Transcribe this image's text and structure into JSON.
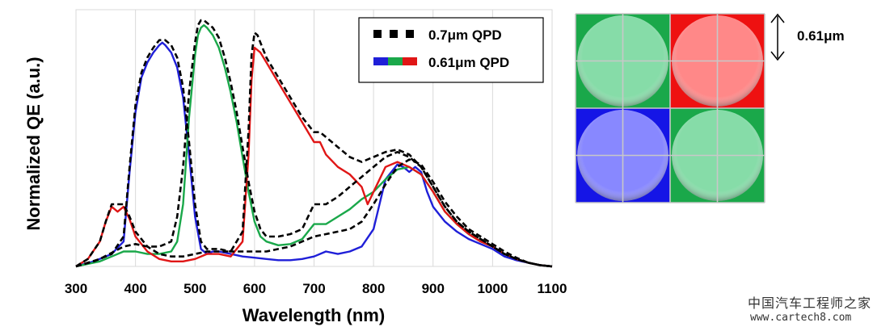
{
  "chart_data": {
    "type": "line",
    "xlabel": "Wavelength (nm)",
    "ylabel": "Normalized QE (a.u.)",
    "xlim": [
      300,
      1100
    ],
    "ylim": [
      0,
      1.0
    ],
    "xticks": [
      "300",
      "400",
      "500",
      "600",
      "700",
      "800",
      "900",
      "1000",
      "1100"
    ],
    "grid": "vertical",
    "legend_position": "top-right",
    "legend": [
      {
        "label": "0.7μm QPD",
        "style": "dashed",
        "colors": [
          "#000000"
        ]
      },
      {
        "label": "0.61μm QPD",
        "style": "solid",
        "colors": [
          "#1f1fd8",
          "#1aa84a",
          "#e01616"
        ]
      }
    ],
    "series": [
      {
        "name": "0.61μm QPD blue",
        "color": "#1f1fd8",
        "style": "solid",
        "x": [
          300,
          330,
          360,
          380,
          390,
          400,
          410,
          420,
          430,
          440,
          445,
          450,
          460,
          470,
          480,
          490,
          500,
          510,
          520,
          530,
          540,
          560,
          580,
          600,
          620,
          640,
          660,
          680,
          700,
          720,
          740,
          760,
          780,
          800,
          810,
          820,
          830,
          840,
          850,
          860,
          870,
          880,
          890,
          900,
          920,
          940,
          960,
          980,
          1000,
          1020,
          1040,
          1060,
          1080,
          1100
        ],
        "y": [
          0,
          0.02,
          0.05,
          0.1,
          0.38,
          0.62,
          0.76,
          0.82,
          0.86,
          0.89,
          0.9,
          0.89,
          0.86,
          0.8,
          0.68,
          0.45,
          0.2,
          0.07,
          0.05,
          0.06,
          0.06,
          0.05,
          0.04,
          0.035,
          0.03,
          0.025,
          0.025,
          0.03,
          0.04,
          0.06,
          0.05,
          0.06,
          0.08,
          0.15,
          0.25,
          0.35,
          0.38,
          0.41,
          0.4,
          0.38,
          0.4,
          0.38,
          0.3,
          0.24,
          0.18,
          0.14,
          0.11,
          0.09,
          0.07,
          0.04,
          0.025,
          0.015,
          0.005,
          0
        ]
      },
      {
        "name": "0.61μm QPD green",
        "color": "#1aa84a",
        "style": "solid",
        "x": [
          300,
          340,
          360,
          380,
          400,
          420,
          440,
          460,
          470,
          480,
          490,
          500,
          505,
          510,
          515,
          520,
          530,
          540,
          550,
          560,
          570,
          580,
          590,
          600,
          610,
          620,
          640,
          660,
          680,
          700,
          720,
          740,
          760,
          780,
          800,
          820,
          840,
          860,
          880,
          900,
          920,
          940,
          960,
          980,
          1000,
          1020,
          1040,
          1060,
          1080,
          1100
        ],
        "y": [
          0,
          0.02,
          0.04,
          0.06,
          0.06,
          0.05,
          0.05,
          0.06,
          0.1,
          0.25,
          0.6,
          0.85,
          0.93,
          0.96,
          0.97,
          0.96,
          0.93,
          0.88,
          0.8,
          0.7,
          0.58,
          0.44,
          0.3,
          0.18,
          0.12,
          0.1,
          0.085,
          0.09,
          0.11,
          0.17,
          0.17,
          0.2,
          0.23,
          0.27,
          0.3,
          0.35,
          0.39,
          0.4,
          0.37,
          0.3,
          0.22,
          0.17,
          0.13,
          0.1,
          0.08,
          0.05,
          0.03,
          0.015,
          0.005,
          0
        ]
      },
      {
        "name": "0.61μm QPD red",
        "color": "#e01616",
        "style": "solid",
        "x": [
          300,
          320,
          340,
          350,
          360,
          370,
          380,
          390,
          400,
          420,
          440,
          460,
          480,
          500,
          520,
          540,
          560,
          580,
          590,
          595,
          600,
          610,
          620,
          640,
          660,
          680,
          700,
          710,
          720,
          740,
          760,
          780,
          790,
          800,
          820,
          840,
          860,
          880,
          900,
          920,
          940,
          960,
          980,
          1000,
          1020,
          1040,
          1060,
          1080,
          1100
        ],
        "y": [
          0,
          0.03,
          0.1,
          0.18,
          0.24,
          0.22,
          0.24,
          0.19,
          0.12,
          0.06,
          0.03,
          0.02,
          0.02,
          0.03,
          0.05,
          0.05,
          0.04,
          0.1,
          0.45,
          0.75,
          0.88,
          0.86,
          0.82,
          0.74,
          0.66,
          0.58,
          0.5,
          0.5,
          0.45,
          0.4,
          0.37,
          0.32,
          0.25,
          0.3,
          0.4,
          0.42,
          0.4,
          0.37,
          0.3,
          0.22,
          0.17,
          0.13,
          0.1,
          0.08,
          0.05,
          0.03,
          0.015,
          0.005,
          0
        ]
      },
      {
        "name": "0.7μm QPD blue",
        "color": "#000000",
        "style": "dashed",
        "x": [
          300,
          330,
          360,
          380,
          390,
          400,
          410,
          420,
          430,
          440,
          450,
          460,
          470,
          480,
          490,
          500,
          510,
          520,
          540,
          560,
          580,
          600,
          620,
          640,
          660,
          680,
          700,
          720,
          740,
          760,
          780,
          800,
          820,
          840,
          860,
          880,
          900,
          920,
          940,
          960,
          980,
          1000,
          1020,
          1040,
          1060,
          1080,
          1100
        ],
        "y": [
          0,
          0.02,
          0.05,
          0.12,
          0.4,
          0.65,
          0.78,
          0.84,
          0.88,
          0.91,
          0.91,
          0.89,
          0.84,
          0.72,
          0.5,
          0.25,
          0.1,
          0.07,
          0.07,
          0.06,
          0.06,
          0.06,
          0.06,
          0.07,
          0.08,
          0.1,
          0.12,
          0.13,
          0.14,
          0.15,
          0.18,
          0.25,
          0.33,
          0.4,
          0.43,
          0.41,
          0.34,
          0.26,
          0.2,
          0.15,
          0.12,
          0.09,
          0.06,
          0.035,
          0.015,
          0.005,
          0
        ]
      },
      {
        "name": "0.7μm QPD green",
        "color": "#000000",
        "style": "dashed",
        "x": [
          300,
          340,
          380,
          400,
          420,
          440,
          460,
          470,
          480,
          490,
          500,
          505,
          510,
          515,
          520,
          530,
          540,
          550,
          560,
          570,
          580,
          590,
          600,
          610,
          620,
          640,
          660,
          680,
          700,
          720,
          740,
          760,
          780,
          800,
          820,
          840,
          860,
          880,
          900,
          920,
          940,
          960,
          980,
          1000,
          1020,
          1040,
          1060,
          1080,
          1100
        ],
        "y": [
          0,
          0.03,
          0.08,
          0.09,
          0.08,
          0.08,
          0.1,
          0.2,
          0.4,
          0.7,
          0.9,
          0.97,
          0.99,
          0.99,
          0.98,
          0.96,
          0.92,
          0.84,
          0.74,
          0.62,
          0.48,
          0.34,
          0.22,
          0.15,
          0.12,
          0.12,
          0.13,
          0.15,
          0.25,
          0.25,
          0.28,
          0.32,
          0.36,
          0.4,
          0.44,
          0.46,
          0.44,
          0.4,
          0.32,
          0.24,
          0.18,
          0.14,
          0.11,
          0.08,
          0.05,
          0.03,
          0.015,
          0.005,
          0
        ]
      },
      {
        "name": "0.7μm QPD red",
        "color": "#000000",
        "style": "dashed",
        "x": [
          300,
          320,
          340,
          350,
          360,
          370,
          380,
          390,
          400,
          420,
          440,
          460,
          480,
          500,
          520,
          540,
          560,
          580,
          590,
          595,
          600,
          605,
          610,
          620,
          640,
          660,
          680,
          700,
          710,
          720,
          740,
          760,
          780,
          800,
          820,
          840,
          860,
          880,
          900,
          920,
          940,
          960,
          980,
          1000,
          1020,
          1040,
          1060,
          1080,
          1100
        ],
        "y": [
          0,
          0.03,
          0.1,
          0.18,
          0.25,
          0.25,
          0.25,
          0.2,
          0.14,
          0.08,
          0.05,
          0.04,
          0.04,
          0.05,
          0.06,
          0.06,
          0.06,
          0.14,
          0.55,
          0.85,
          0.94,
          0.93,
          0.9,
          0.84,
          0.76,
          0.68,
          0.6,
          0.54,
          0.54,
          0.52,
          0.48,
          0.44,
          0.42,
          0.44,
          0.46,
          0.47,
          0.45,
          0.4,
          0.32,
          0.24,
          0.18,
          0.14,
          0.11,
          0.08,
          0.05,
          0.03,
          0.015,
          0.005,
          0
        ]
      }
    ]
  },
  "pixel_grid": {
    "scale_label": "0.61μm",
    "cells": [
      {
        "name": "green",
        "bg": "#1aa84a",
        "lens": "#86dca8"
      },
      {
        "name": "red",
        "bg": "#ee1111",
        "lens": "#ff8888"
      },
      {
        "name": "blue",
        "bg": "#1515e6",
        "lens": "#8888ff"
      },
      {
        "name": "green",
        "bg": "#1aa84a",
        "lens": "#86dca8"
      }
    ]
  },
  "watermark": {
    "line1": "中国汽车工程师之家",
    "line2": "www.cartech8.com"
  }
}
